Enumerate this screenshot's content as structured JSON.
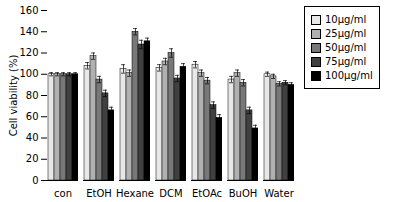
{
  "chart_data": {
    "type": "bar",
    "categories": [
      "con",
      "EtOH",
      "Hexane",
      "DCM",
      "EtOAc",
      "BuOH",
      "Water"
    ],
    "series": [
      {
        "name": "10μg/ml",
        "color": "#e8e8e8",
        "values": [
          100,
          108,
          105,
          106,
          109,
          95,
          100
        ],
        "errors": [
          1.5,
          3,
          4,
          3,
          3,
          3,
          2
        ]
      },
      {
        "name": "25μg/ml",
        "color": "#b0b0b0",
        "values": [
          100,
          117,
          101,
          112,
          101,
          101,
          98
        ],
        "errors": [
          1.5,
          3,
          3,
          3,
          3,
          3,
          2
        ]
      },
      {
        "name": "50μg/ml",
        "color": "#787878",
        "values": [
          100,
          95,
          140,
          120,
          94,
          92,
          91
        ],
        "errors": [
          1.5,
          3,
          3,
          4,
          3,
          3,
          2
        ]
      },
      {
        "name": "75μg/ml",
        "color": "#404040",
        "values": [
          100,
          82,
          128,
          96,
          71,
          66,
          92
        ],
        "errors": [
          1.5,
          3,
          4,
          3,
          3,
          3,
          2
        ]
      },
      {
        "name": "100μg/ml",
        "color": "#000000",
        "values": [
          100,
          66,
          131,
          107,
          59,
          49,
          90
        ],
        "errors": [
          1.5,
          3,
          3,
          3,
          3,
          3,
          2
        ]
      }
    ],
    "ylabel": "Cell viability (%)",
    "ylim": [
      0,
      160
    ],
    "yticks": [
      0,
      20,
      40,
      60,
      80,
      100,
      120,
      140,
      160
    ],
    "grid": false,
    "legend": "right"
  }
}
